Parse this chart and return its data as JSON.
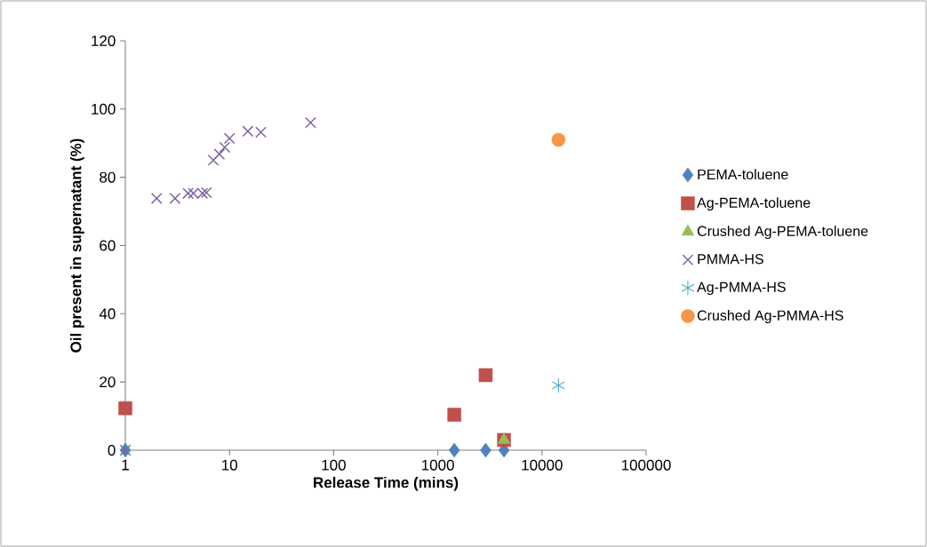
{
  "chart_data": {
    "type": "scatter",
    "xlabel": "Release Time (mins)",
    "ylabel": "Oil present in supernatant (%)",
    "log": "x",
    "xlim": [
      1,
      100000
    ],
    "ylim": [
      0,
      120
    ],
    "xticks": [
      1,
      10,
      100,
      1000,
      10000,
      100000
    ],
    "yticks": [
      0,
      20,
      40,
      60,
      80,
      100,
      120
    ],
    "grid": false,
    "legend": "right",
    "series": [
      {
        "name": "PEMA-toluene",
        "color": "#4f81bd",
        "marker": "diamond",
        "x": [
          1,
          1440,
          2880,
          4320
        ],
        "values": [
          0,
          0,
          0,
          0
        ]
      },
      {
        "name": "Ag-PEMA-toluene",
        "color": "#c0504d",
        "marker": "square",
        "x": [
          1,
          1440,
          2880,
          4320
        ],
        "values": [
          12.3,
          10.4,
          22,
          3
        ]
      },
      {
        "name": "Crushed Ag-PEMA-toluene",
        "color": "#9bbb59",
        "marker": "triangle",
        "x": [
          4320
        ],
        "values": [
          3
        ]
      },
      {
        "name": "PMMA-HS",
        "color": "#8064a2",
        "marker": "cross",
        "x": [
          1,
          2,
          3,
          4,
          4.5,
          5.5,
          6,
          7,
          8,
          9,
          10,
          15,
          20,
          60
        ],
        "values": [
          0,
          73.8,
          73.8,
          75.3,
          75.3,
          75.3,
          75.5,
          85,
          86.8,
          88.8,
          91.4,
          93.5,
          93.2,
          96
        ]
      },
      {
        "name": "Ag-PMMA-HS",
        "color": "#4bacc6",
        "x": [
          14400
        ],
        "values": [
          19
        ]
      },
      {
        "name": "Crushed Ag-PMMA-HS",
        "color": "#f79646",
        "marker": "circle",
        "x": [
          14400
        ],
        "values": [
          91
        ]
      }
    ]
  }
}
